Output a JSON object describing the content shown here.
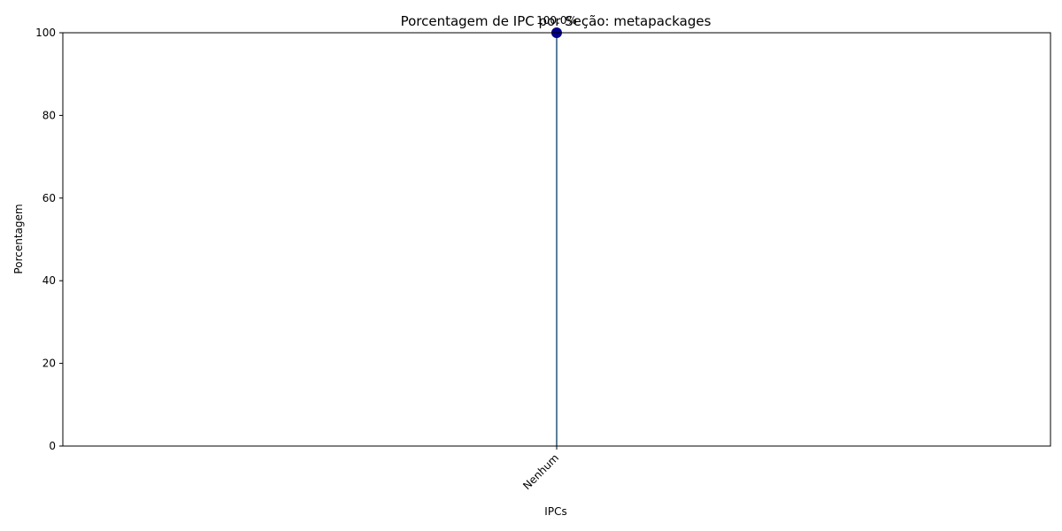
{
  "chart_data": {
    "type": "lollipop",
    "title": "Porcentagem de IPC por Seção: metapackages",
    "xlabel": "IPCs",
    "ylabel": "Porcentagem",
    "categories": [
      "Nenhum"
    ],
    "values": [
      100.0
    ],
    "data_labels": [
      "100.0%"
    ],
    "ylim": [
      0,
      100
    ],
    "yticks": [
      0,
      20,
      40,
      60,
      80,
      100
    ],
    "grid": false,
    "colors": {
      "stem": "#5b7f99",
      "marker": "#00008b"
    }
  }
}
